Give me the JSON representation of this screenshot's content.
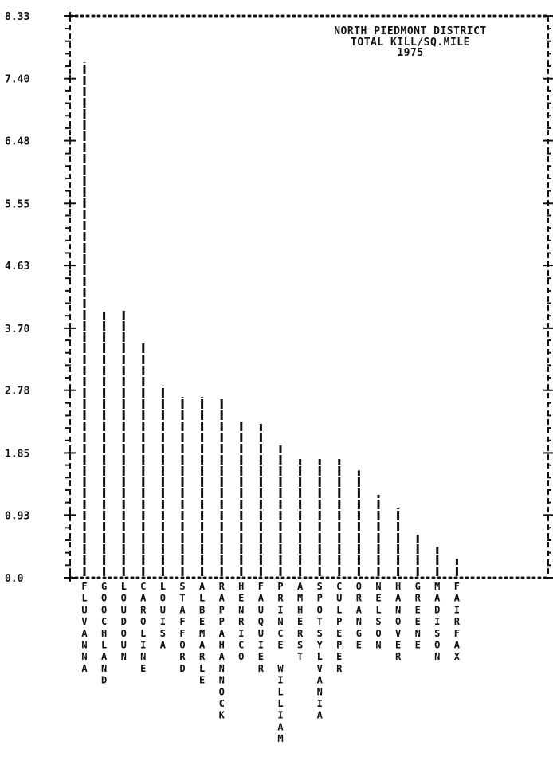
{
  "chart_data": {
    "type": "bar",
    "title_lines": [
      "NORTH PIEDMONT DISTRICT",
      "TOTAL KILL/SQ.MILE",
      "1975"
    ],
    "xlabel": "",
    "ylabel": "",
    "ylim": [
      0,
      8.33
    ],
    "y_ticks": [
      0.0,
      0.93,
      1.85,
      2.78,
      3.7,
      4.63,
      5.55,
      6.48,
      7.4,
      8.33
    ],
    "y_tick_labels": [
      "0.0",
      "0.93",
      "1.85",
      "2.78",
      "3.70",
      "4.63",
      "5.55",
      "6.48",
      "7.40",
      "8.33"
    ],
    "grid": false,
    "categories": [
      "FLUVANNA",
      "GOOCHLAND",
      "LOUDOUN",
      "CAROLINE",
      "LOUISA",
      "STAFFORD",
      "ALBEMARLE",
      "RAPPAHANNOCK",
      "HENRICO",
      "FAUQUIER",
      "PRINCE WILLIAM",
      "AMHERST",
      "SPOTSYLVANIA",
      "CULPEPER",
      "ORANGE",
      "NELSON",
      "HANOVER",
      "GREENE",
      "MADISON",
      "FAIRFAX"
    ],
    "values": [
      7.64,
      3.94,
      3.96,
      3.48,
      2.85,
      2.68,
      2.68,
      2.67,
      2.34,
      2.28,
      1.96,
      1.76,
      1.76,
      1.76,
      1.59,
      1.23,
      1.03,
      0.64,
      0.46,
      0.28
    ]
  }
}
